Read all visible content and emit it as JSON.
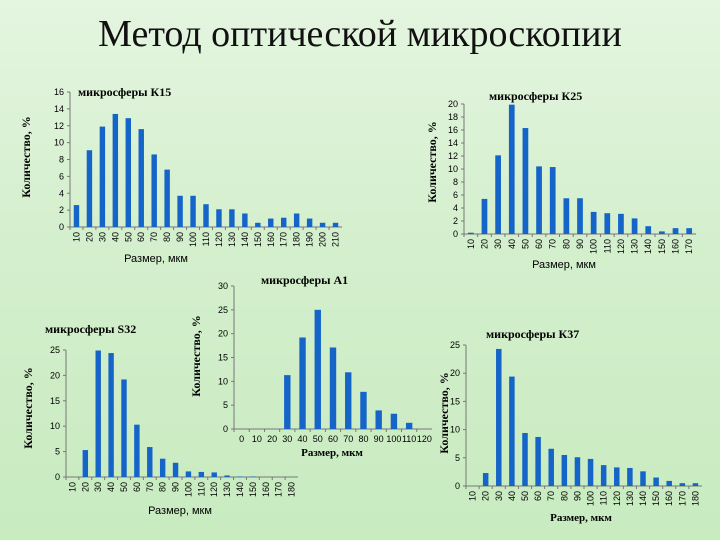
{
  "slide": {
    "title": "Метод оптической микроскопии"
  },
  "chart_data": [
    {
      "id": "k15",
      "type": "bar",
      "title": "микросферы К15",
      "xlabel": "Размер, мкм",
      "ylabel": "Количество, %",
      "ylim": [
        0,
        16
      ],
      "yticks": [
        0,
        2,
        4,
        6,
        8,
        10,
        12,
        14,
        16
      ],
      "categories": [
        "10",
        "20",
        "30",
        "40",
        "50",
        "60",
        "70",
        "80",
        "90",
        "100",
        "110",
        "120",
        "130",
        "140",
        "150",
        "160",
        "170",
        "180",
        "190",
        "200",
        "210"
      ],
      "values": [
        2.6,
        9.1,
        11.9,
        13.4,
        12.9,
        11.6,
        8.6,
        6.8,
        3.7,
        3.7,
        2.7,
        2.1,
        2.1,
        1.6,
        0.5,
        1.0,
        1.1,
        1.6,
        1.0,
        0.5,
        0.5
      ],
      "color": "#1565c9",
      "grid": false,
      "legend": "none"
    },
    {
      "id": "k25",
      "type": "bar",
      "title": "микросферы К25",
      "xlabel": "Размер, мкм",
      "ylabel": "Количество, %",
      "ylim": [
        0,
        20
      ],
      "yticks": [
        0,
        2,
        4,
        6,
        8,
        10,
        12,
        14,
        16,
        18,
        20
      ],
      "categories": [
        "10",
        "20",
        "30",
        "40",
        "50",
        "60",
        "70",
        "80",
        "90",
        "100",
        "110",
        "120",
        "130",
        "140",
        "150",
        "160",
        "170"
      ],
      "values": [
        0.2,
        5.4,
        12.1,
        19.9,
        16.3,
        10.4,
        10.3,
        5.5,
        5.5,
        3.4,
        3.2,
        3.1,
        2.4,
        1.2,
        0.4,
        0.9,
        0.9
      ],
      "color": "#1565c9",
      "grid": false,
      "legend": "none"
    },
    {
      "id": "s32",
      "type": "bar",
      "title": "микросферы S32",
      "xlabel": "Размер, мкм",
      "ylabel": "Количество, %",
      "ylim": [
        0,
        25
      ],
      "yticks": [
        0,
        5,
        10,
        15,
        20,
        25
      ],
      "categories": [
        "10",
        "20",
        "30",
        "40",
        "50",
        "60",
        "70",
        "80",
        "90",
        "100",
        "110",
        "120",
        "130",
        "140",
        "150",
        "160",
        "170",
        "180"
      ],
      "values": [
        0,
        5.3,
        24.9,
        24.4,
        19.2,
        10.3,
        5.9,
        3.6,
        2.8,
        1.1,
        1.0,
        0.9,
        0.3,
        0.1,
        0.1,
        0,
        0,
        0
      ],
      "color": "#1565c9",
      "grid": false,
      "legend": "none"
    },
    {
      "id": "a1",
      "type": "bar",
      "title": "микросферы А1",
      "xlabel": "Размер, мкм",
      "ylabel": "Количество, %",
      "ylim": [
        0,
        30
      ],
      "yticks": [
        0,
        5,
        10,
        15,
        20,
        25,
        30
      ],
      "categories": [
        "0",
        "10",
        "20",
        "30",
        "40",
        "50",
        "60",
        "70",
        "80",
        "90",
        "100",
        "110",
        "120"
      ],
      "values": [
        0,
        0,
        0,
        11.3,
        19.2,
        25,
        17.1,
        11.9,
        7.8,
        3.9,
        3.2,
        1.3,
        0
      ],
      "color": "#1565c9",
      "grid": false,
      "legend": "none"
    },
    {
      "id": "k37",
      "type": "bar",
      "title": "микросферы К37",
      "xlabel": "Размер, мкм",
      "ylabel": "Количество, %",
      "ylim": [
        0,
        25
      ],
      "yticks": [
        0,
        5,
        10,
        15,
        20,
        25
      ],
      "categories": [
        "10",
        "20",
        "30",
        "40",
        "50",
        "60",
        "70",
        "80",
        "90",
        "100",
        "110",
        "120",
        "130",
        "140",
        "150",
        "160",
        "170",
        "180"
      ],
      "values": [
        0,
        2.3,
        24.3,
        19.4,
        9.4,
        8.7,
        6.6,
        5.5,
        5.1,
        4.8,
        3.7,
        3.3,
        3.2,
        2.6,
        1.5,
        0.9,
        0.5,
        0.5
      ],
      "color": "#1565c9",
      "grid": false,
      "legend": "none"
    }
  ]
}
